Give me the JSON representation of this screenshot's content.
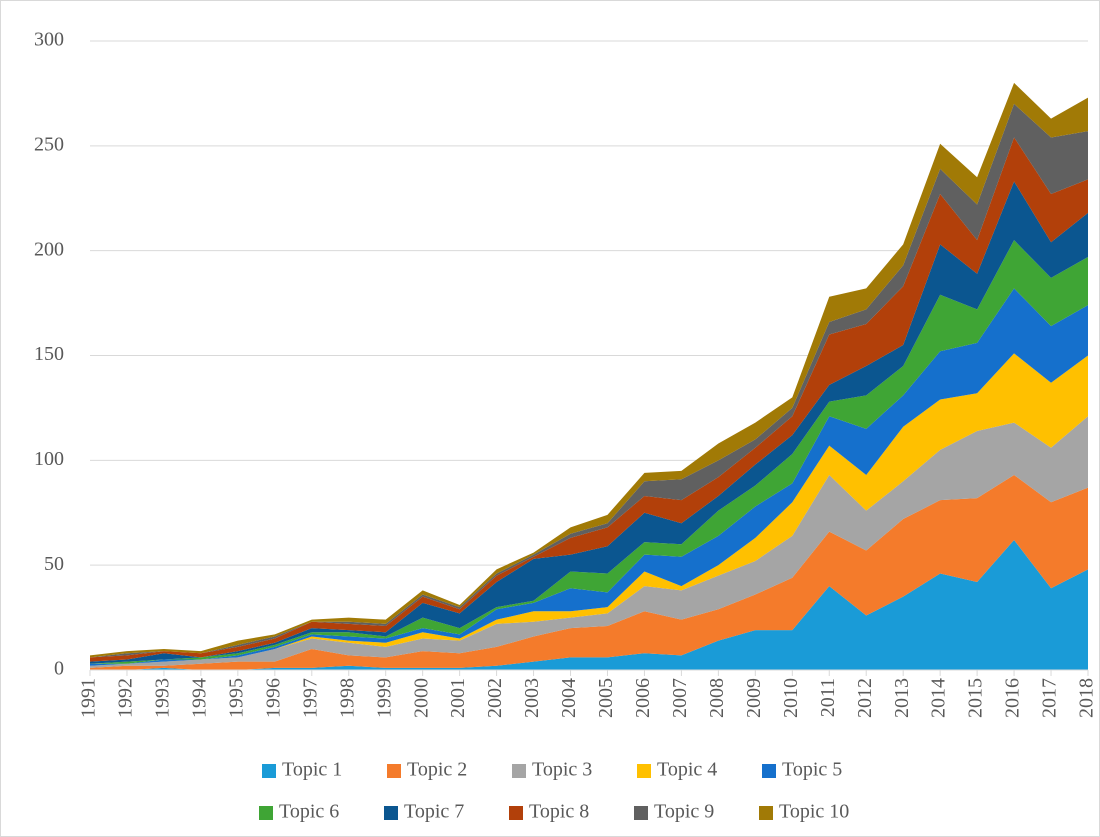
{
  "chart_data": {
    "type": "stacked_area",
    "categories": [
      "1991",
      "1992",
      "1993",
      "1994",
      "1995",
      "1996",
      "1997",
      "1998",
      "1999",
      "2000",
      "2001",
      "2002",
      "2003",
      "2004",
      "2005",
      "2006",
      "2007",
      "2008",
      "2009",
      "2010",
      "2011",
      "2012",
      "2013",
      "2014",
      "2015",
      "2016",
      "2017",
      "2018"
    ],
    "series": [
      {
        "name": "Topic 1",
        "color": "#1a9bd7",
        "values": [
          0,
          0,
          1,
          0,
          0,
          1,
          1,
          2,
          1,
          1,
          1,
          2,
          4,
          6,
          6,
          8,
          7,
          14,
          19,
          19,
          40,
          26,
          35,
          46,
          42,
          62,
          39,
          48
        ]
      },
      {
        "name": "Topic 2",
        "color": "#f47b2b",
        "values": [
          1,
          2,
          1,
          3,
          4,
          3,
          9,
          5,
          5,
          8,
          7,
          9,
          12,
          14,
          15,
          20,
          17,
          15,
          17,
          25,
          26,
          31,
          37,
          35,
          40,
          31,
          41,
          39
        ]
      },
      {
        "name": "Topic 3",
        "color": "#a5a5a5",
        "values": [
          1,
          1,
          2,
          2,
          2,
          6,
          5,
          6,
          5,
          6,
          6,
          11,
          7,
          5,
          6,
          12,
          14,
          16,
          16,
          20,
          27,
          19,
          18,
          24,
          32,
          25,
          26,
          34
        ]
      },
      {
        "name": "Topic 4",
        "color": "#ffc000",
        "values": [
          0,
          0,
          0,
          0,
          0,
          0,
          1,
          1,
          2,
          3,
          1,
          2,
          5,
          3,
          3,
          7,
          2,
          5,
          11,
          16,
          14,
          17,
          26,
          24,
          18,
          33,
          31,
          29
        ]
      },
      {
        "name": "Topic 5",
        "color": "#1570cc",
        "values": [
          1,
          0,
          1,
          0,
          1,
          1,
          1,
          2,
          2,
          2,
          2,
          5,
          4,
          11,
          7,
          8,
          14,
          14,
          15,
          9,
          14,
          22,
          15,
          23,
          24,
          31,
          27,
          24
        ]
      },
      {
        "name": "Topic 6",
        "color": "#3fa535",
        "values": [
          0,
          1,
          0,
          1,
          1,
          1,
          1,
          2,
          1,
          5,
          3,
          1,
          1,
          8,
          9,
          6,
          6,
          12,
          10,
          14,
          7,
          16,
          14,
          27,
          16,
          23,
          23,
          23
        ]
      },
      {
        "name": "Topic 7",
        "color": "#0b5690",
        "values": [
          1,
          1,
          3,
          0,
          1,
          1,
          2,
          1,
          2,
          7,
          7,
          12,
          20,
          8,
          13,
          14,
          10,
          7,
          10,
          9,
          8,
          14,
          10,
          24,
          17,
          28,
          17,
          21
        ]
      },
      {
        "name": "Topic 8",
        "color": "#b2400a",
        "values": [
          2,
          2,
          1,
          2,
          2,
          2,
          3,
          3,
          3,
          3,
          2,
          3,
          1,
          8,
          9,
          8,
          11,
          9,
          8,
          9,
          24,
          20,
          28,
          24,
          16,
          21,
          23,
          16
        ]
      },
      {
        "name": "Topic 9",
        "color": "#606060",
        "values": [
          0,
          1,
          0,
          0,
          1,
          1,
          0,
          1,
          1,
          1,
          1,
          1,
          1,
          2,
          2,
          7,
          10,
          8,
          4,
          4,
          6,
          7,
          10,
          12,
          17,
          16,
          27,
          23
        ]
      },
      {
        "name": "Topic 10",
        "color": "#a17a06",
        "values": [
          1,
          1,
          1,
          1,
          2,
          1,
          1,
          2,
          2,
          2,
          1,
          2,
          1,
          3,
          4,
          4,
          4,
          8,
          8,
          5,
          12,
          10,
          10,
          12,
          13,
          10,
          9,
          16
        ]
      }
    ],
    "ylim": [
      0,
      300
    ],
    "yticks": [
      0,
      50,
      100,
      150,
      200,
      250,
      300
    ],
    "grid": true,
    "legend": "bottom"
  }
}
